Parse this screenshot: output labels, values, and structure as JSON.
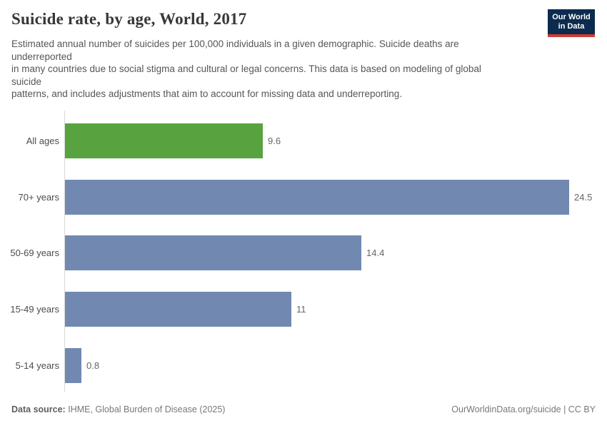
{
  "header": {
    "title": "Suicide rate, by age, World, 2017",
    "subtitle_lines": [
      "Estimated annual number of suicides per 100,000 individuals in a given demographic. Suicide deaths are",
      "underreported",
      "in many countries due to social stigma and cultural or legal concerns. This data is based on modeling of global",
      "suicide",
      "patterns, and includes adjustments that aim to account for missing data and underreporting."
    ],
    "logo": {
      "line1": "Our World",
      "line2": "in Data",
      "bg_color": "#0c2b4e",
      "accent_color": "#cf3b32"
    }
  },
  "chart_data": {
    "type": "bar",
    "orientation": "horizontal",
    "title": "Suicide rate, by age, World, 2017",
    "unit": "suicides per 100,000 individuals",
    "categories": [
      "All ages",
      "70+ years",
      "50-69 years",
      "15-49 years",
      "5-14 years"
    ],
    "values": [
      9.6,
      24.5,
      14.4,
      11,
      0.8
    ],
    "value_labels": [
      "9.6",
      "24.5",
      "14.4",
      "11",
      "0.8"
    ],
    "bar_colors": [
      "#58a33f",
      "#7189b0",
      "#7189b0",
      "#7189b0",
      "#7189b0"
    ],
    "xlim": [
      0,
      24.5
    ],
    "grid": false,
    "legend": false,
    "axis_line_color": "#d9d9d9"
  },
  "footer": {
    "source_label": "Data source:",
    "source_text": "IHME, Global Burden of Disease (2025)",
    "right_text": "OurWorldinData.org/suicide | CC BY"
  }
}
